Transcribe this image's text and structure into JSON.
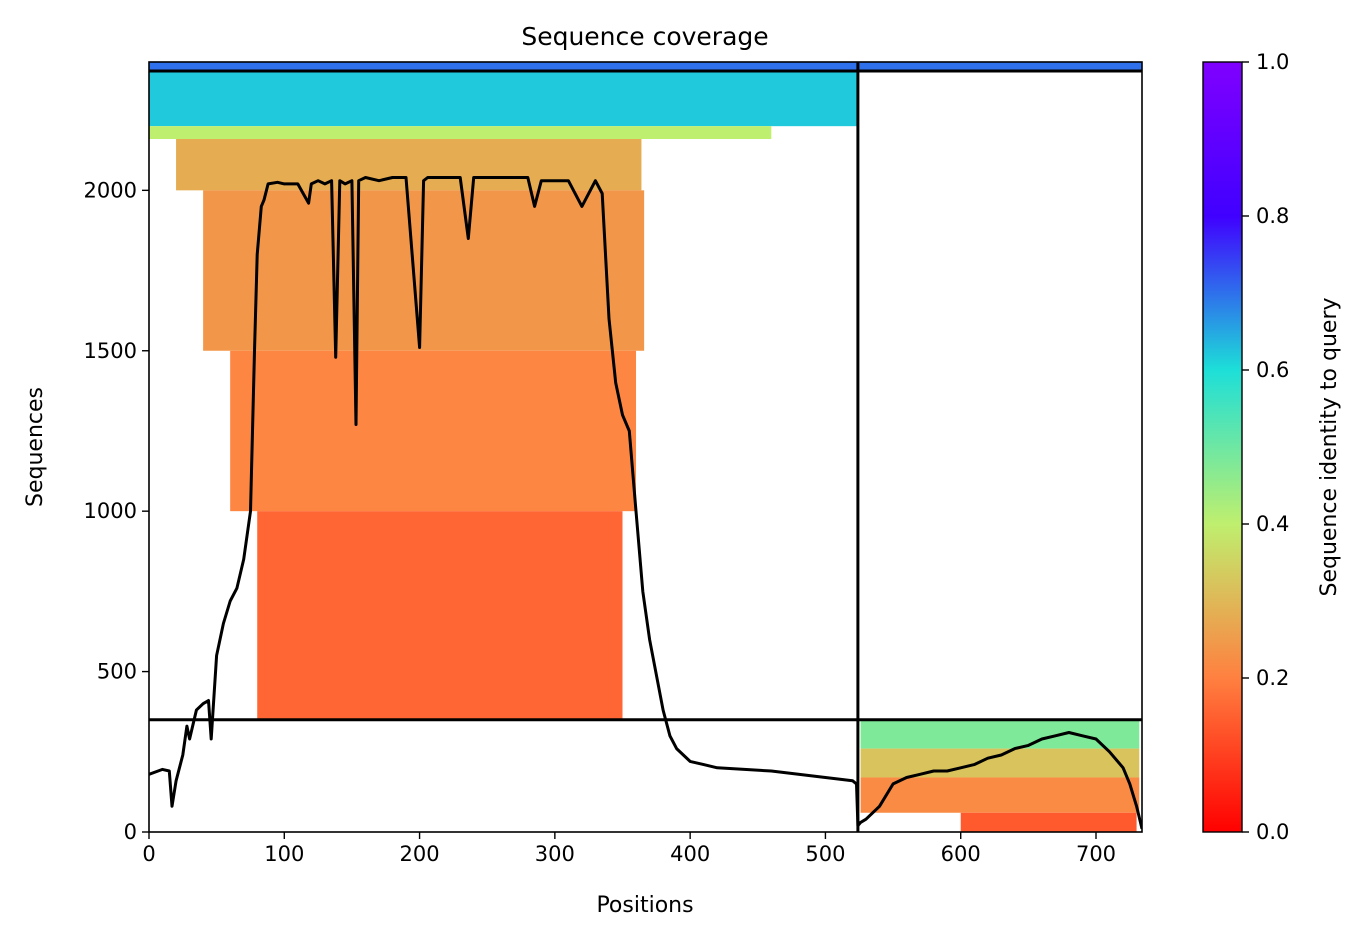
{
  "chart_data": {
    "type": "heatmap",
    "title": "Sequence coverage",
    "xlabel": "Positions",
    "ylabel": "Sequences",
    "xlim": [
      0,
      734
    ],
    "ylim": [
      0,
      2400
    ],
    "xticks": [
      0,
      100,
      200,
      300,
      400,
      500,
      600,
      700
    ],
    "yticks": [
      0,
      500,
      1000,
      1500,
      2000
    ],
    "colorbar": {
      "label": "Sequence identity to query",
      "colormap": "rainbow",
      "range": [
        0,
        1
      ],
      "ticks": [
        "0.0",
        "0.2",
        "0.4",
        "0.6",
        "0.8",
        "1.0"
      ],
      "colors": [
        "#ff0000",
        "#ff8040",
        "#bfef6e",
        "#1ddfd8",
        "#4000ff",
        "#8000ff"
      ]
    },
    "chain_boundary_x": 524,
    "chain_boundary_y": [
      350,
      2372
    ],
    "alignment_blocks": [
      {
        "x": [
          0,
          524
        ],
        "y": [
          2372,
          2400
        ],
        "identity": 0.7
      },
      {
        "x": [
          0,
          524
        ],
        "y": [
          2200,
          2372
        ],
        "identity": 0.62
      },
      {
        "x": [
          0,
          460
        ],
        "y": [
          2160,
          2200
        ],
        "identity": 0.4
      },
      {
        "x": [
          20,
          364
        ],
        "y": [
          2000,
          2160
        ],
        "identity": 0.28
      },
      {
        "x": [
          40,
          366
        ],
        "y": [
          1500,
          2000
        ],
        "identity": 0.24
      },
      {
        "x": [
          60,
          360
        ],
        "y": [
          1000,
          1500
        ],
        "identity": 0.21
      },
      {
        "x": [
          80,
          350
        ],
        "y": [
          350,
          1000
        ],
        "identity": 0.16
      },
      {
        "x": [
          524,
          734
        ],
        "y": [
          2372,
          2400
        ],
        "identity": 0.7
      },
      {
        "x": [
          526,
          732
        ],
        "y": [
          260,
          350
        ],
        "identity": 0.48
      },
      {
        "x": [
          526,
          732
        ],
        "y": [
          170,
          260
        ],
        "identity": 0.32
      },
      {
        "x": [
          526,
          732
        ],
        "y": [
          60,
          170
        ],
        "identity": 0.22
      },
      {
        "x": [
          600,
          730
        ],
        "y": [
          0,
          60
        ],
        "identity": 0.14
      }
    ],
    "coverage_line": {
      "x": [
        0,
        10,
        15,
        17,
        20,
        25,
        28,
        30,
        35,
        40,
        44,
        46,
        50,
        55,
        60,
        65,
        70,
        75,
        78,
        80,
        83,
        85,
        88,
        95,
        100,
        110,
        118,
        120,
        125,
        130,
        135,
        138,
        141,
        145,
        150,
        153,
        155,
        160,
        170,
        180,
        190,
        200,
        203,
        206,
        210,
        220,
        230,
        236,
        240,
        250,
        260,
        270,
        280,
        285,
        290,
        300,
        310,
        320,
        330,
        335,
        340,
        345,
        350,
        355,
        360,
        365,
        370,
        380,
        385,
        390,
        400,
        410,
        420,
        440,
        460,
        480,
        500,
        510,
        520,
        523,
        524,
        526,
        530,
        540,
        550,
        560,
        570,
        580,
        590,
        600,
        610,
        620,
        630,
        640,
        650,
        660,
        670,
        680,
        690,
        700,
        710,
        720,
        725,
        730,
        734
      ],
      "y": [
        180,
        195,
        190,
        80,
        160,
        240,
        330,
        290,
        380,
        400,
        410,
        290,
        550,
        650,
        720,
        760,
        850,
        1000,
        1500,
        1800,
        1950,
        1970,
        2020,
        2025,
        2020,
        2020,
        1960,
        2020,
        2030,
        2020,
        2030,
        1480,
        2030,
        2020,
        2030,
        1270,
        2030,
        2040,
        2030,
        2040,
        2040,
        1510,
        2030,
        2040,
        2040,
        2040,
        2040,
        1850,
        2040,
        2040,
        2040,
        2040,
        2040,
        1950,
        2030,
        2030,
        2030,
        1950,
        2030,
        1990,
        1600,
        1400,
        1300,
        1250,
        1000,
        750,
        600,
        380,
        300,
        260,
        220,
        210,
        200,
        195,
        190,
        180,
        170,
        165,
        160,
        150,
        20,
        30,
        40,
        80,
        150,
        170,
        180,
        190,
        190,
        200,
        210,
        230,
        240,
        260,
        270,
        290,
        300,
        310,
        300,
        290,
        250,
        200,
        150,
        80,
        10
      ]
    }
  }
}
